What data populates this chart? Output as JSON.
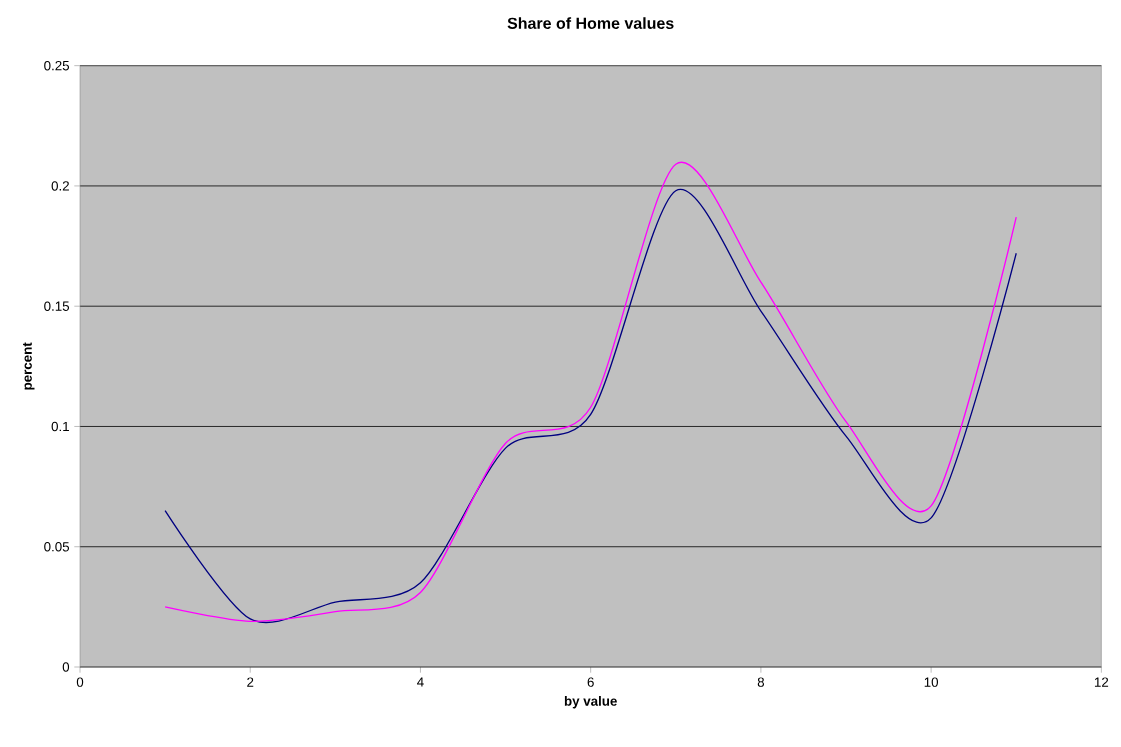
{
  "chart_data": {
    "type": "line",
    "title": "Share of Home values",
    "xlabel": "by value",
    "ylabel": "percent",
    "x": [
      1,
      2,
      3,
      4,
      5,
      6,
      7,
      8,
      9,
      10,
      11
    ],
    "series": [
      {
        "color": "#000080",
        "values": [
          0.065,
          0.02,
          0.027,
          0.035,
          0.091,
          0.105,
          0.198,
          0.148,
          0.096,
          0.062,
          0.172
        ]
      },
      {
        "color": "#ff00ff",
        "values": [
          0.025,
          0.019,
          0.023,
          0.031,
          0.093,
          0.108,
          0.209,
          0.16,
          0.102,
          0.067,
          0.187
        ]
      }
    ],
    "xlim": [
      0,
      12
    ],
    "xticks": [
      0,
      2,
      4,
      6,
      8,
      10,
      12
    ],
    "ylim": [
      0,
      0.25
    ],
    "yticks": [
      0,
      0.05,
      0.1,
      0.15,
      0.2,
      0.25
    ],
    "grid": "y",
    "line_style": "solid"
  }
}
